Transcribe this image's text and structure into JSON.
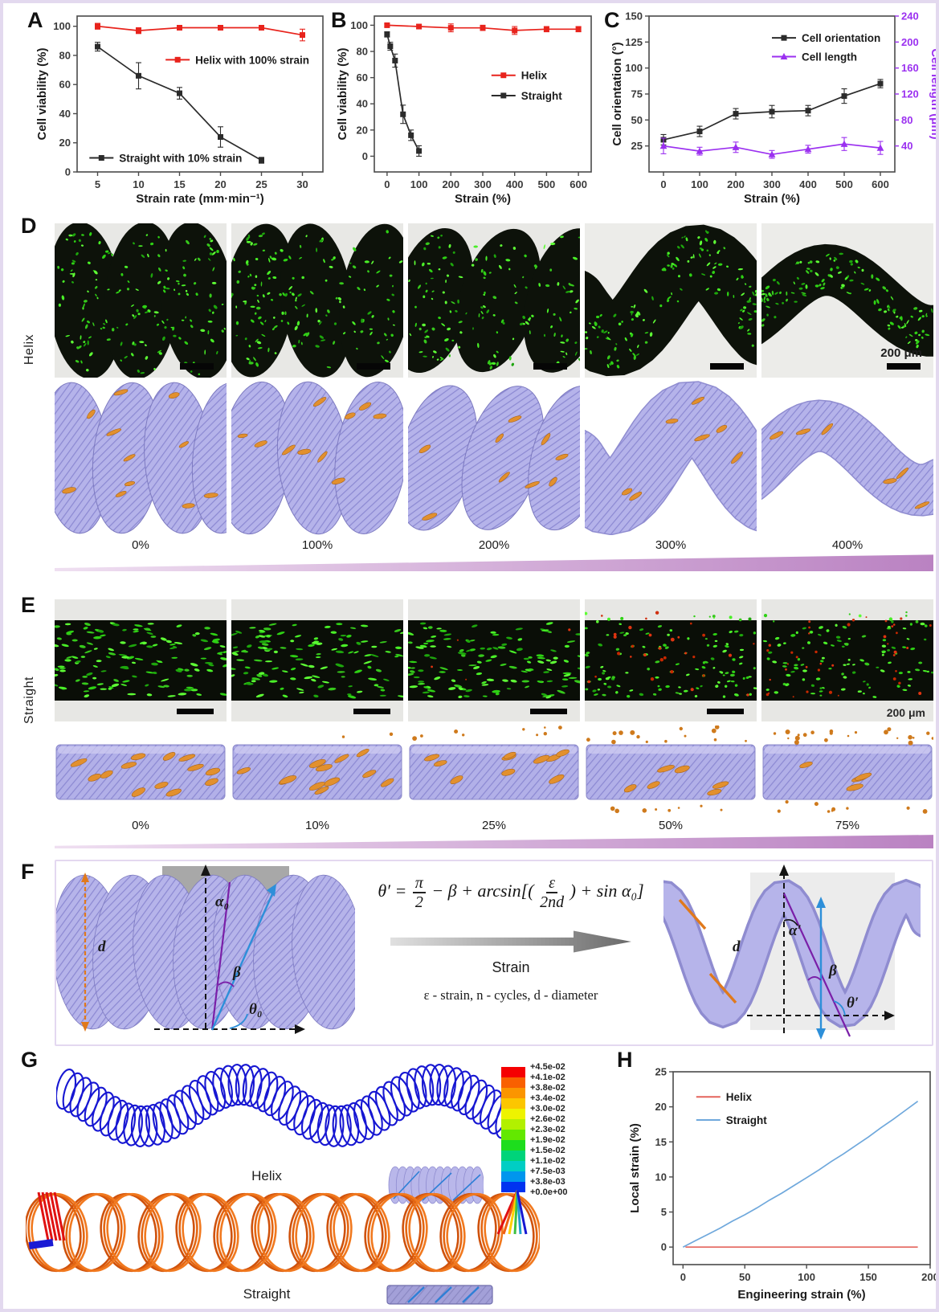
{
  "panels": {
    "a": "A",
    "b": "B",
    "c": "C",
    "d": "D",
    "e": "E",
    "f": "F",
    "g": "G",
    "h": "H"
  },
  "chart_data": [
    {
      "id": "chartA",
      "type": "line",
      "title": "",
      "xlabel": "Strain rate (mm·min⁻¹)",
      "ylabel": "Cell viability (%)",
      "xlim": [
        2.5,
        32.5
      ],
      "xticks": [
        5,
        10,
        15,
        20,
        25,
        30
      ],
      "ylim": [
        0,
        107
      ],
      "yticks": [
        0,
        20,
        40,
        60,
        80,
        100
      ],
      "series": [
        {
          "name": "Helix with 100% strain",
          "color": "#e8231c",
          "marker": "square",
          "x": [
            5,
            10,
            15,
            20,
            25,
            30
          ],
          "y": [
            100,
            97,
            99,
            99,
            99,
            94
          ],
          "err": [
            2,
            2,
            1,
            1,
            1,
            4
          ],
          "legend_at": [
            0.36,
            0.72
          ]
        },
        {
          "name": "Straight with 10% strain",
          "color": "#2b2b2b",
          "marker": "square",
          "x": [
            5,
            10,
            15,
            20,
            25
          ],
          "y": [
            86,
            66,
            54,
            24,
            8
          ],
          "err": [
            3,
            9,
            4,
            7,
            2
          ],
          "legend_at": [
            0.05,
            0.09
          ]
        }
      ]
    },
    {
      "id": "chartB",
      "type": "line",
      "title": "",
      "xlabel": "Strain (%)",
      "ylabel": "Cell viability (%)",
      "xlim": [
        -40,
        640
      ],
      "xticks": [
        0,
        100,
        200,
        300,
        400,
        500,
        600
      ],
      "ylim": [
        -12,
        107
      ],
      "yticks": [
        0,
        20,
        40,
        60,
        80,
        100
      ],
      "series": [
        {
          "name": "Helix",
          "color": "#e8231c",
          "marker": "square",
          "x": [
            0,
            100,
            200,
            300,
            400,
            500,
            600
          ],
          "y": [
            100,
            99,
            98,
            98,
            96,
            97,
            97
          ],
          "err": [
            1,
            1.5,
            3,
            2,
            3,
            2,
            2
          ],
          "legend_at": [
            0.54,
            0.62
          ]
        },
        {
          "name": "Straight",
          "color": "#2b2b2b",
          "marker": "square",
          "x": [
            0,
            10,
            25,
            50,
            75,
            100
          ],
          "y": [
            93,
            84,
            73,
            32,
            16,
            4
          ],
          "err": [
            2,
            3,
            5,
            7,
            4,
            4
          ],
          "legend_at": [
            0.54,
            0.49
          ]
        }
      ]
    },
    {
      "id": "chartC",
      "type": "line",
      "title": "",
      "xlabel": "Strain (%)",
      "ylabel": "Cell orientation (°)",
      "ylabel_right": "Cell length (μm)",
      "right_color": "#9b30f0",
      "xlim": [
        -40,
        640
      ],
      "xticks": [
        0,
        100,
        200,
        300,
        400,
        500,
        600
      ],
      "ylim": [
        0,
        150
      ],
      "yticks": [
        25,
        50,
        75,
        100,
        125,
        150
      ],
      "ylim_right": [
        0,
        240
      ],
      "yticks_right": [
        40,
        80,
        120,
        160,
        200,
        240
      ],
      "series": [
        {
          "name": "Cell orientation",
          "color": "#2b2b2b",
          "marker": "square",
          "x": [
            0,
            100,
            200,
            300,
            400,
            500,
            600
          ],
          "y": [
            31,
            39,
            56,
            58,
            59,
            73,
            85
          ],
          "err": [
            5,
            5,
            5,
            6,
            5,
            7,
            4
          ],
          "legend_at": [
            0.5,
            0.86
          ]
        },
        {
          "name": "Cell length",
          "color": "#9b30f0",
          "marker": "triangle",
          "axis": "right",
          "x": [
            0,
            100,
            200,
            300,
            400,
            500,
            600
          ],
          "y": [
            40,
            32,
            38,
            27,
            35,
            43,
            37
          ],
          "err": [
            12,
            6,
            8,
            6,
            6,
            10,
            10
          ],
          "legend_at": [
            0.5,
            0.74
          ]
        }
      ]
    },
    {
      "id": "chartH",
      "type": "line",
      "title": "",
      "xlabel": "Engineering strain (%)",
      "ylabel": "Local strain (%)",
      "xlim": [
        -8,
        200
      ],
      "xticks": [
        0,
        50,
        100,
        150,
        200
      ],
      "ylim": [
        -2.5,
        25
      ],
      "yticks": [
        0,
        5,
        10,
        15,
        20,
        25
      ],
      "series": [
        {
          "name": "Helix",
          "color": "#e4645c",
          "marker": "none",
          "x": [
            2,
            190
          ],
          "y": [
            0,
            0
          ],
          "legend_at": [
            0.09,
            0.87
          ]
        },
        {
          "name": "Straight",
          "color": "#6fa8dc",
          "marker": "none",
          "x": [
            0,
            10,
            20,
            30,
            40,
            50,
            60,
            70,
            80,
            90,
            100,
            110,
            120,
            130,
            140,
            150,
            160,
            170,
            180,
            190
          ],
          "y": [
            0,
            0.9,
            1.8,
            2.7,
            3.7,
            4.6,
            5.6,
            6.7,
            7.7,
            8.8,
            9.9,
            11.0,
            12.2,
            13.3,
            14.5,
            15.7,
            17.0,
            18.2,
            19.5,
            20.8
          ],
          "legend_at": [
            0.09,
            0.75
          ]
        }
      ]
    }
  ],
  "panel_d": {
    "side_label": "Helix",
    "strain_labels": [
      "0%",
      "100%",
      "200%",
      "300%",
      "400%"
    ],
    "scale_bar": "200 μm"
  },
  "panel_e": {
    "side_label": "Straight",
    "strain_labels": [
      "0%",
      "10%",
      "25%",
      "50%",
      "75%"
    ],
    "scale_bar": "200 μm"
  },
  "panel_f": {
    "equation": {
      "lhs": "θ′ =",
      "num1": "π",
      "den1": "2",
      "mid": "− β + arcsin[(",
      "num2": "ε",
      "den2": "2nd",
      "tail": ") + sin α₀]"
    },
    "arrow_label": "Strain",
    "symbol_legend": "ε - strain, n - cycles, d - diameter",
    "left_diagram": {
      "d": "d",
      "alpha": "α₀",
      "beta": "β",
      "theta": "θ₀"
    },
    "right_diagram": {
      "d": "d",
      "alpha": "α′",
      "beta": "β",
      "theta": "θ′"
    }
  },
  "panel_g": {
    "helix_caption": "Helix",
    "straight_caption": "Straight",
    "colorbar_values": [
      "+4.5e-02",
      "+4.1e-02",
      "+3.8e-02",
      "+3.4e-02",
      "+3.0e-02",
      "+2.6e-02",
      "+2.3e-02",
      "+1.9e-02",
      "+1.5e-02",
      "+1.1e-02",
      "+7.5e-03",
      "+3.8e-03",
      "+0.0e+00"
    ],
    "colorbar_colors": [
      "#f50002",
      "#f96000",
      "#fb9500",
      "#fcc600",
      "#eef300",
      "#b2f000",
      "#63e800",
      "#1ddd1d",
      "#00d47a",
      "#00cec4",
      "#0096ee",
      "#0033f0"
    ]
  }
}
